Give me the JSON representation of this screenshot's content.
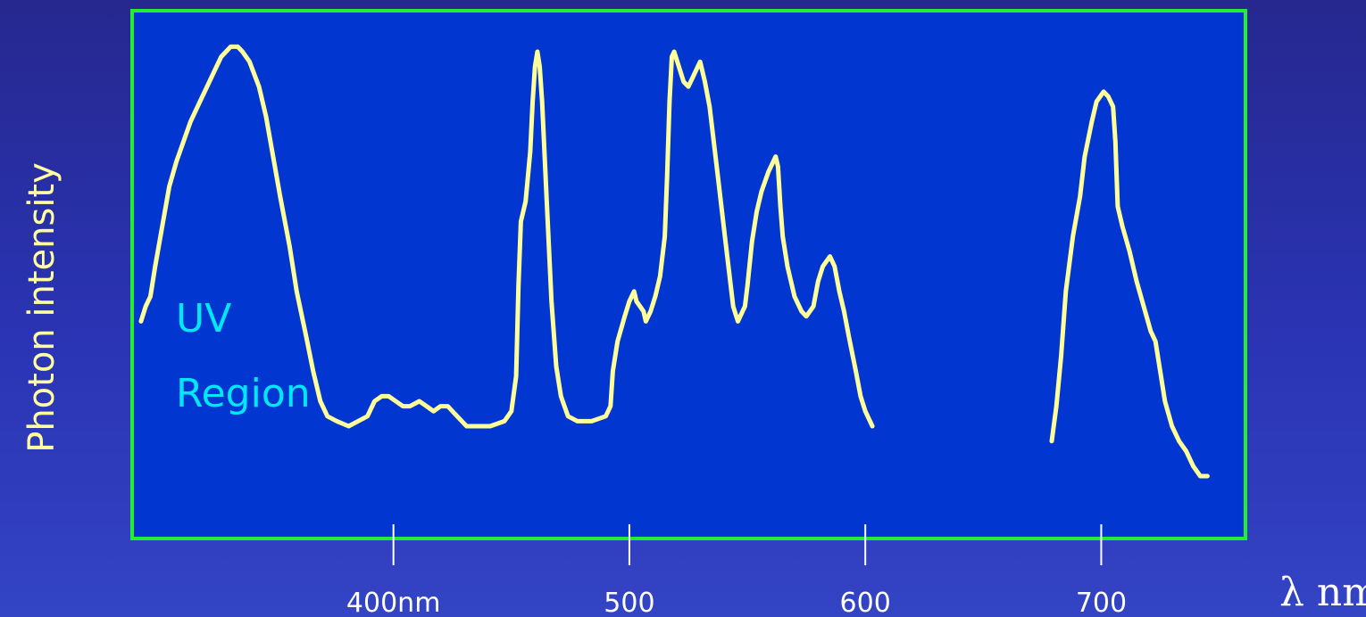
{
  "colors": {
    "plot_background": "#0236d0",
    "plot_border": "#22ee33",
    "curve": "#ffff99",
    "annotation": "#00e8ff",
    "tick": "#ffffff",
    "ylabel": "#ffffa0"
  },
  "chart_data": {
    "type": "line",
    "title": "",
    "xlabel": "λ nm",
    "ylabel": "Photon intensity",
    "xlim": [
      290,
      760
    ],
    "ylim": [
      0,
      1
    ],
    "grid": false,
    "ticks": [
      {
        "value": 400,
        "label": "400nm"
      },
      {
        "value": 500,
        "label": "500"
      },
      {
        "value": 600,
        "label": "600"
      },
      {
        "value": 700,
        "label": "700"
      }
    ],
    "annotations": [
      {
        "text": "UV",
        "x": 310,
        "y": 0.46
      },
      {
        "text": "Region",
        "x": 310,
        "y": 0.27
      }
    ],
    "series": [
      {
        "values": [
          [
            293,
            0.41
          ],
          [
            295,
            0.44
          ],
          [
            297,
            0.46
          ],
          [
            299,
            0.52
          ],
          [
            302,
            0.6
          ],
          [
            305,
            0.68
          ],
          [
            308,
            0.73
          ],
          [
            311,
            0.77
          ],
          [
            314,
            0.81
          ],
          [
            317,
            0.84
          ],
          [
            321,
            0.88
          ],
          [
            324,
            0.91
          ],
          [
            327,
            0.94
          ],
          [
            329,
            0.95
          ],
          [
            331,
            0.96
          ],
          [
            334,
            0.96
          ],
          [
            336,
            0.95
          ],
          [
            339,
            0.93
          ],
          [
            343,
            0.88
          ],
          [
            346,
            0.82
          ],
          [
            349,
            0.74
          ],
          [
            352,
            0.66
          ],
          [
            356,
            0.56
          ],
          [
            359,
            0.47
          ],
          [
            363,
            0.38
          ],
          [
            366,
            0.31
          ],
          [
            369,
            0.25
          ],
          [
            372,
            0.22
          ],
          [
            376,
            0.21
          ],
          [
            381,
            0.2
          ],
          [
            385,
            0.21
          ],
          [
            389,
            0.22
          ],
          [
            392,
            0.25
          ],
          [
            395,
            0.26
          ],
          [
            398,
            0.26
          ],
          [
            401,
            0.25
          ],
          [
            404,
            0.24
          ],
          [
            407,
            0.24
          ],
          [
            411,
            0.25
          ],
          [
            414,
            0.24
          ],
          [
            417,
            0.23
          ],
          [
            420,
            0.24
          ],
          [
            423,
            0.24
          ],
          [
            427,
            0.22
          ],
          [
            431,
            0.2
          ],
          [
            435,
            0.2
          ],
          [
            441,
            0.2
          ],
          [
            447,
            0.21
          ],
          [
            450,
            0.23
          ],
          [
            452,
            0.3
          ],
          [
            453,
            0.48
          ],
          [
            454,
            0.61
          ],
          [
            456,
            0.65
          ],
          [
            458,
            0.75
          ],
          [
            459,
            0.85
          ],
          [
            460,
            0.92
          ],
          [
            461,
            0.95
          ],
          [
            462,
            0.92
          ],
          [
            463,
            0.85
          ],
          [
            465,
            0.65
          ],
          [
            467,
            0.45
          ],
          [
            469,
            0.32
          ],
          [
            471,
            0.26
          ],
          [
            474,
            0.22
          ],
          [
            478,
            0.21
          ],
          [
            484,
            0.21
          ],
          [
            490,
            0.22
          ],
          [
            492,
            0.24
          ],
          [
            493,
            0.31
          ],
          [
            495,
            0.37
          ],
          [
            498,
            0.42
          ],
          [
            500,
            0.45
          ],
          [
            502,
            0.47
          ],
          [
            503,
            0.45
          ],
          [
            506,
            0.43
          ],
          [
            507,
            0.41
          ],
          [
            509,
            0.43
          ],
          [
            511,
            0.46
          ],
          [
            513,
            0.5
          ],
          [
            515,
            0.58
          ],
          [
            516,
            0.7
          ],
          [
            517,
            0.85
          ],
          [
            518,
            0.94
          ],
          [
            519,
            0.95
          ],
          [
            521,
            0.92
          ],
          [
            523,
            0.89
          ],
          [
            525,
            0.88
          ],
          [
            527,
            0.9
          ],
          [
            528,
            0.91
          ],
          [
            530,
            0.93
          ],
          [
            532,
            0.89
          ],
          [
            534,
            0.84
          ],
          [
            536,
            0.76
          ],
          [
            538,
            0.68
          ],
          [
            540,
            0.6
          ],
          [
            542,
            0.52
          ],
          [
            544,
            0.44
          ],
          [
            546,
            0.41
          ],
          [
            547,
            0.42
          ],
          [
            549,
            0.44
          ],
          [
            550,
            0.48
          ],
          [
            552,
            0.57
          ],
          [
            554,
            0.63
          ],
          [
            556,
            0.67
          ],
          [
            559,
            0.71
          ],
          [
            562,
            0.74
          ],
          [
            563,
            0.72
          ],
          [
            564,
            0.64
          ],
          [
            565,
            0.58
          ],
          [
            567,
            0.52
          ],
          [
            570,
            0.46
          ],
          [
            573,
            0.43
          ],
          [
            575,
            0.42
          ],
          [
            578,
            0.44
          ],
          [
            580,
            0.49
          ],
          [
            582,
            0.52
          ],
          [
            585,
            0.54
          ],
          [
            587,
            0.52
          ],
          [
            589,
            0.47
          ],
          [
            591,
            0.43
          ],
          [
            593,
            0.38
          ],
          [
            596,
            0.31
          ],
          [
            598,
            0.26
          ],
          [
            600,
            0.23
          ],
          [
            603,
            0.2
          ]
        ]
      },
      {
        "values": [
          [
            679,
            0.17
          ],
          [
            681,
            0.24
          ],
          [
            683,
            0.34
          ],
          [
            685,
            0.47
          ],
          [
            688,
            0.58
          ],
          [
            691,
            0.66
          ],
          [
            693,
            0.74
          ],
          [
            696,
            0.81
          ],
          [
            698,
            0.85
          ],
          [
            701,
            0.87
          ],
          [
            703,
            0.86
          ],
          [
            705,
            0.84
          ],
          [
            706,
            0.77
          ],
          [
            707,
            0.64
          ],
          [
            709,
            0.6
          ],
          [
            712,
            0.55
          ],
          [
            715,
            0.49
          ],
          [
            718,
            0.44
          ],
          [
            721,
            0.39
          ],
          [
            723,
            0.37
          ],
          [
            725,
            0.31
          ],
          [
            727,
            0.25
          ],
          [
            730,
            0.2
          ],
          [
            733,
            0.17
          ],
          [
            736,
            0.15
          ],
          [
            739,
            0.12
          ],
          [
            742,
            0.1
          ],
          [
            745,
            0.1
          ]
        ]
      }
    ]
  }
}
